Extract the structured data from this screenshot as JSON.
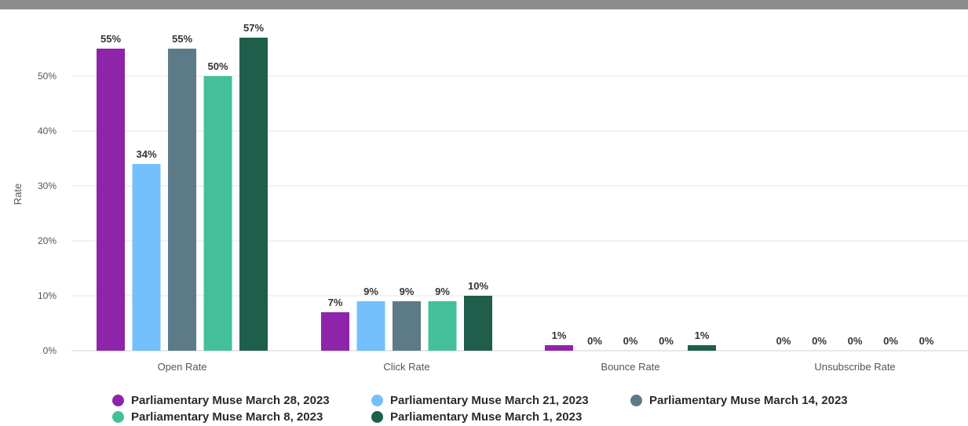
{
  "chart_data": {
    "type": "bar",
    "ylabel": "Rate",
    "xlabel": "",
    "ylim": [
      0,
      0.57
    ],
    "yticks": [
      0,
      0.1,
      0.2,
      0.3,
      0.4,
      0.5
    ],
    "ytick_labels": [
      "0%",
      "10%",
      "20%",
      "30%",
      "40%",
      "50%"
    ],
    "grid": true,
    "legend_position": "bottom",
    "categories": [
      "Open Rate",
      "Click Rate",
      "Bounce Rate",
      "Unsubscribe Rate"
    ],
    "series": [
      {
        "name": "Parliamentary Muse March 28, 2023",
        "color": "#8e24aa",
        "values": [
          0.55,
          0.07,
          0.01,
          0.0
        ],
        "labels": [
          "55%",
          "7%",
          "1%",
          "0%"
        ]
      },
      {
        "name": "Parliamentary Muse March 21, 2023",
        "color": "#74c0fc",
        "values": [
          0.34,
          0.09,
          0.0,
          0.0
        ],
        "labels": [
          "34%",
          "9%",
          "0%",
          "0%"
        ]
      },
      {
        "name": "Parliamentary Muse March 14, 2023",
        "color": "#5c7a87",
        "values": [
          0.55,
          0.09,
          0.0,
          0.0
        ],
        "labels": [
          "55%",
          "9%",
          "0%",
          "0%"
        ]
      },
      {
        "name": "Parliamentary Muse March 8, 2023",
        "color": "#43c09a",
        "values": [
          0.5,
          0.09,
          0.0,
          0.0
        ],
        "labels": [
          "50%",
          "9%",
          "0%",
          "0%"
        ]
      },
      {
        "name": "Parliamentary Muse March 1, 2023",
        "color": "#1e5e4a",
        "values": [
          0.57,
          0.1,
          0.01,
          0.0
        ],
        "labels": [
          "57%",
          "10%",
          "1%",
          "0%"
        ]
      }
    ]
  }
}
